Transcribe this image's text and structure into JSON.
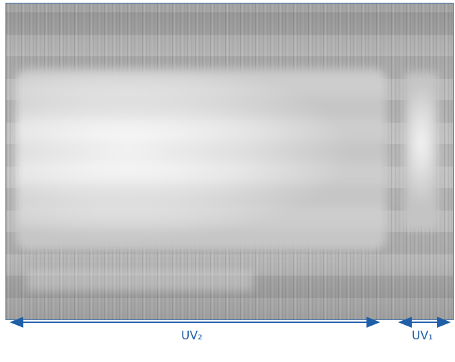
{
  "labels": {
    "uv2": "UV₂",
    "uv1": "UV₁"
  }
}
